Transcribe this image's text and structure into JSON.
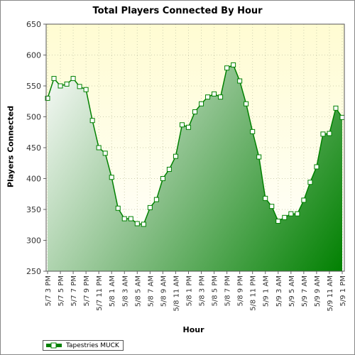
{
  "chart_data": {
    "type": "area",
    "title": "Total Players Connected By Hour",
    "xlabel": "Hour",
    "ylabel": "Players Connected",
    "ylim": [
      250,
      650
    ],
    "yticks": [
      250,
      300,
      350,
      400,
      450,
      500,
      550,
      600,
      650
    ],
    "grid": true,
    "legend_position": "bottom-left",
    "xticks": [
      "5/7 3 PM",
      "5/7 5 PM",
      "5/7 7 PM",
      "5/7 9 PM",
      "5/7 11 PM",
      "5/8 1 AM",
      "5/8 3 AM",
      "5/8 5 AM",
      "5/8 7 AM",
      "5/8 9 AM",
      "5/8 11 AM",
      "5/8 1 PM",
      "5/8 3 PM",
      "5/8 5 PM",
      "5/8 7 PM",
      "5/8 9 PM",
      "5/8 11 PM",
      "5/9 1 AM",
      "5/9 3 AM",
      "5/9 5 AM",
      "5/9 7 AM",
      "5/9 9 AM",
      "5/9 11 AM",
      "5/9 1 PM"
    ],
    "series": [
      {
        "name": "Tapestries MUCK",
        "color": "#008000",
        "values": [
          530,
          562,
          550,
          553,
          562,
          549,
          544,
          494,
          450,
          441,
          402,
          352,
          335,
          335,
          327,
          326,
          353,
          366,
          400,
          415,
          436,
          487,
          483,
          508,
          521,
          532,
          537,
          532,
          579,
          584,
          558,
          521,
          476,
          435,
          368,
          355,
          331,
          337,
          343,
          343,
          365,
          394,
          419,
          472,
          473,
          514,
          499
        ]
      }
    ]
  }
}
